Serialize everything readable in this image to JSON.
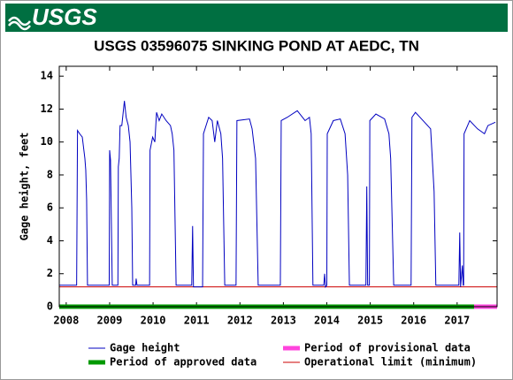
{
  "header": {
    "logo": "USGS"
  },
  "chart_data": {
    "type": "line",
    "title": "USGS 03596075 SINKING POND AT AEDC, TN",
    "ylabel": "Gage height, feet",
    "xlim": [
      2007.84,
      2017.92
    ],
    "xticks": [
      2008,
      2009,
      2010,
      2011,
      2012,
      2013,
      2014,
      2015,
      2016,
      2017
    ],
    "ylim": [
      0,
      14.6
    ],
    "yticks": [
      0,
      2,
      4,
      6,
      8,
      10,
      12,
      14
    ],
    "grid": false,
    "series": [
      {
        "name": "Gage height",
        "color": "#0000c0",
        "x": [
          2007.84,
          2008.24,
          2008.26,
          2008.31,
          2008.37,
          2008.43,
          2008.45,
          2008.47,
          2008.49,
          2008.99,
          2009.0,
          2009.02,
          2009.06,
          2009.08,
          2009.19,
          2009.2,
          2009.22,
          2009.24,
          2009.28,
          2009.34,
          2009.38,
          2009.43,
          2009.47,
          2009.51,
          2009.53,
          2009.6,
          2009.61,
          2009.63,
          2009.92,
          2009.93,
          2009.99,
          2010.04,
          2010.08,
          2010.14,
          2010.2,
          2010.3,
          2010.4,
          2010.44,
          2010.48,
          2010.53,
          2010.89,
          2010.91,
          2010.93,
          2011.14,
          2011.16,
          2011.28,
          2011.36,
          2011.42,
          2011.48,
          2011.56,
          2011.6,
          2011.65,
          2011.91,
          2011.93,
          2012.22,
          2012.28,
          2012.36,
          2012.42,
          2012.93,
          2012.95,
          2013.09,
          2013.32,
          2013.5,
          2013.6,
          2013.64,
          2013.68,
          2013.93,
          2013.95,
          2013.97,
          2014.0,
          2014.01,
          2014.15,
          2014.31,
          2014.42,
          2014.48,
          2014.52,
          2014.9,
          2014.92,
          2014.94,
          2014.98,
          2014.99,
          2015.13,
          2015.33,
          2015.43,
          2015.47,
          2015.54,
          2015.94,
          2015.96,
          2016.04,
          2016.25,
          2016.39,
          2016.47,
          2016.51,
          2017.04,
          2017.06,
          2017.08,
          2017.12,
          2017.14,
          2017.15,
          2017.16,
          2017.29,
          2017.47,
          2017.63,
          2017.71,
          2017.88
        ],
        "values": [
          1.3,
          1.3,
          10.7,
          10.5,
          10.3,
          9.0,
          8.3,
          6.5,
          1.3,
          1.3,
          9.5,
          8.9,
          1.3,
          1.3,
          1.3,
          8.5,
          9.0,
          11.0,
          11.0,
          12.5,
          11.5,
          11.0,
          10.0,
          6.0,
          1.3,
          1.3,
          1.7,
          1.3,
          1.3,
          9.5,
          10.3,
          10.0,
          11.8,
          11.3,
          11.7,
          11.3,
          11.0,
          10.5,
          9.5,
          1.3,
          1.3,
          4.9,
          1.2,
          1.2,
          10.5,
          11.5,
          11.3,
          10.0,
          11.3,
          10.5,
          9.0,
          1.3,
          1.3,
          11.3,
          11.4,
          10.8,
          9.0,
          1.3,
          1.3,
          11.3,
          11.5,
          11.9,
          11.3,
          11.5,
          10.5,
          1.3,
          1.3,
          2.0,
          1.2,
          1.3,
          10.5,
          11.3,
          11.4,
          10.5,
          8.0,
          1.3,
          1.3,
          7.3,
          1.3,
          1.3,
          11.3,
          11.7,
          11.4,
          10.5,
          9.0,
          1.3,
          1.3,
          11.5,
          11.8,
          11.2,
          10.8,
          7.0,
          1.3,
          1.3,
          4.5,
          1.2,
          2.5,
          1.3,
          1.3,
          10.5,
          11.3,
          10.8,
          10.5,
          11.0,
          11.2
        ]
      }
    ],
    "periods": [
      {
        "name": "Period of approved data",
        "color": "#009900",
        "range": [
          2007.84,
          2017.39
        ]
      },
      {
        "name": "Period of provisional data",
        "color": "#ff44dd",
        "range": [
          2017.39,
          2017.92
        ]
      }
    ],
    "operational_limit": {
      "name": "Operational limit (minimum)",
      "color": "#cc0000",
      "value": 1.2
    }
  }
}
